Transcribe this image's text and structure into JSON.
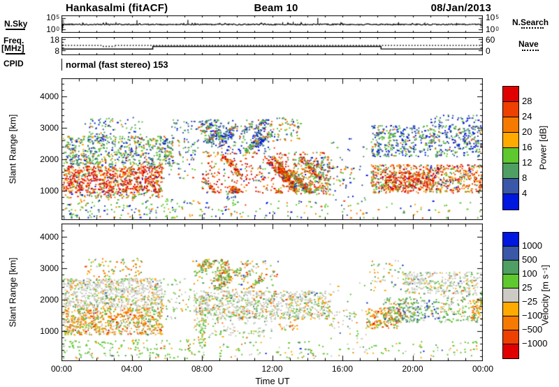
{
  "header": {
    "station": "Hankasalmi (fitACF)",
    "beam": "Beam 10",
    "date": "08/Jan/2013"
  },
  "panels": {
    "nsky": {
      "label": "N.Sky",
      "right_label": "N.Search",
      "hi_base": "10",
      "hi_exp": "5",
      "lo_base": "10",
      "lo_exp": "0"
    },
    "freq": {
      "label_line1": "Freq.",
      "label_line2": "[MHz]",
      "tick_top": "18",
      "tick_bottom": "8",
      "right_tick_top": "60",
      "right_tick_bottom": "0",
      "right_label": "Nave"
    },
    "cpid": {
      "label": "CPID",
      "value": "normal (fast stereo) 153"
    }
  },
  "axes": {
    "x": {
      "labels": [
        "00:00",
        "04:00",
        "08:00",
        "12:00",
        "16:00",
        "20:00",
        "00:00"
      ],
      "title": "Time UT"
    },
    "y": {
      "title": "Slant Range [km]",
      "ticks": [
        "4000",
        "3000",
        "2000",
        "1000"
      ],
      "tick_values": [
        4000,
        3000,
        2000,
        1000
      ]
    }
  },
  "colorbars": {
    "power": {
      "title": "Power [dB]",
      "labels": [
        "28",
        "24",
        "20",
        "16",
        "12",
        "8",
        "4"
      ],
      "colors": [
        "#e10000",
        "#ee4000",
        "#f67a00",
        "#ffaa00",
        "#5ec82e",
        "#4f9e63",
        "#3a57a8",
        "#0017e0"
      ]
    },
    "velocity": {
      "title_pre": "Velocity [m s",
      "title_sup": "−1",
      "title_post": "]",
      "labels": [
        "1000",
        "500",
        "100",
        "25",
        "−25",
        "−100",
        "−500",
        "−1000"
      ],
      "colors": [
        "#0017e0",
        "#3a57a8",
        "#4f9e63",
        "#5ec82e",
        "#cbcbc3",
        "#ffaa00",
        "#f67a00",
        "#ee4000",
        "#e10000"
      ]
    }
  },
  "chart_data": {
    "type": "heatmap",
    "subtype": "superdarn-range-time-intensity",
    "time_range_hours": [
      0,
      24
    ],
    "slant_range_km": [
      0,
      4500
    ],
    "nsky_line": {
      "scale": "log10",
      "axis_decades": [
        0,
        5
      ],
      "base_frac": 0.52,
      "spikes": [
        [
          1.2,
          0.25
        ],
        [
          3.1,
          0.3
        ],
        [
          4.3,
          0.55
        ],
        [
          7.2,
          0.6
        ],
        [
          9.0,
          0.2
        ],
        [
          12.6,
          0.3
        ],
        [
          13.2,
          0.35
        ],
        [
          14.6,
          0.85
        ],
        [
          16.0,
          0.2
        ],
        [
          19.2,
          0.3
        ],
        [
          20.7,
          0.25
        ],
        [
          22.5,
          0.2
        ]
      ]
    },
    "freq_mhz": {
      "axis": [
        8,
        18
      ],
      "steps": [
        [
          0,
          5.2,
          9.1
        ],
        [
          5.2,
          18.2,
          11.4
        ],
        [
          18.2,
          24,
          9.2
        ]
      ]
    },
    "nave": {
      "axis": [
        0,
        60
      ],
      "value": 26,
      "dip": {
        "t": [
          2.35,
          3.05
        ],
        "value": 21
      }
    },
    "power_regions": [
      [
        0,
        5.7,
        950,
        1800,
        0.5,
        [
          38,
          20,
          15,
          8,
          9,
          4,
          3,
          3
        ],
        null
      ],
      [
        0,
        5.7,
        780,
        950,
        0.22,
        [
          10,
          15,
          20,
          10,
          20,
          10,
          8,
          7
        ],
        null
      ],
      [
        0,
        6.3,
        1800,
        2750,
        0.3,
        [
          0,
          4,
          8,
          10,
          26,
          22,
          18,
          12
        ],
        null
      ],
      [
        1.3,
        4.6,
        2750,
        3350,
        0.1,
        [
          0,
          0,
          5,
          0,
          30,
          20,
          25,
          20
        ],
        null
      ],
      [
        0,
        7,
        150,
        750,
        0.09,
        [
          0,
          5,
          12,
          8,
          35,
          10,
          15,
          15
        ],
        null
      ],
      [
        7,
        14.5,
        150,
        700,
        0.05,
        [
          0,
          5,
          12,
          8,
          35,
          10,
          15,
          15
        ],
        null
      ],
      [
        14.5,
        24,
        150,
        700,
        0.03,
        [
          0,
          5,
          12,
          8,
          35,
          10,
          15,
          15
        ],
        null
      ],
      [
        5.6,
        7.6,
        1400,
        2700,
        0.08,
        [
          0,
          5,
          10,
          0,
          25,
          15,
          25,
          20
        ],
        null
      ],
      [
        6.2,
        7.4,
        2750,
        3300,
        0.1,
        [
          0,
          0,
          0,
          0,
          25,
          15,
          25,
          35
        ],
        null
      ],
      [
        7.4,
        12.3,
        2200,
        3280,
        0.32,
        [
          0,
          7,
          8,
          0,
          20,
          15,
          28,
          22
        ],
        {
          "n": 14,
          "len": 0.8,
          "slope": 500
        }
      ],
      [
        7.9,
        15.3,
        950,
        2250,
        0.45,
        [
          30,
          22,
          15,
          8,
          12,
          5,
          4,
          4
        ],
        {
          "n": 16,
          "len": 1,
          "slope": -650
        }
      ],
      [
        13.2,
        15.3,
        900,
        2100,
        0.28,
        [
          5,
          10,
          15,
          5,
          30,
          20,
          8,
          7
        ],
        null
      ],
      [
        12.2,
        13.6,
        2600,
        3350,
        0.15,
        [
          0,
          15,
          20,
          5,
          30,
          15,
          8,
          7
        ],
        null
      ],
      [
        9.2,
        9.9,
        350,
        1000,
        0.12,
        [
          0,
          0,
          0,
          0,
          30,
          20,
          30,
          20
        ],
        null
      ],
      [
        15.2,
        17.6,
        700,
        2700,
        0.02,
        [
          0,
          0,
          5,
          0,
          20,
          10,
          35,
          30
        ],
        null
      ],
      [
        15.2,
        16.6,
        1150,
        1800,
        0.1,
        [
          5,
          15,
          20,
          10,
          25,
          10,
          8,
          7
        ],
        null
      ],
      [
        17.6,
        24,
        950,
        1850,
        0.38,
        [
          18,
          20,
          20,
          10,
          14,
          8,
          5,
          5
        ],
        null
      ],
      [
        18.4,
        21.2,
        1050,
        1600,
        0.3,
        [
          45,
          25,
          15,
          5,
          5,
          3,
          1,
          1
        ],
        null
      ],
      [
        17.6,
        24,
        2100,
        3100,
        0.26,
        [
          0,
          4,
          6,
          0,
          22,
          18,
          25,
          25
        ],
        null
      ],
      [
        21,
        23.8,
        3050,
        3450,
        0.1,
        [
          0,
          0,
          0,
          0,
          20,
          10,
          30,
          40
        ],
        null
      ]
    ],
    "velocity_regions": [
      [
        0,
        5.7,
        1750,
        2700,
        0.42,
        [
          0,
          1,
          4,
          10,
          70,
          8,
          6,
          1,
          0
        ],
        null
      ],
      [
        0,
        5.7,
        900,
        1750,
        0.42,
        [
          0,
          1,
          7,
          16,
          18,
          22,
          26,
          7,
          3
        ],
        null
      ],
      [
        1.3,
        4.6,
        2750,
        3350,
        0.11,
        [
          0,
          0,
          12,
          25,
          10,
          20,
          28,
          5,
          0
        ],
        null
      ],
      [
        0,
        8,
        150,
        750,
        0.09,
        [
          1,
          1,
          7,
          60,
          15,
          8,
          7,
          1,
          0
        ],
        null
      ],
      [
        8,
        14.5,
        150,
        700,
        0.05,
        [
          1,
          1,
          7,
          60,
          15,
          8,
          7,
          1,
          0
        ],
        null
      ],
      [
        14.5,
        24,
        150,
        700,
        0.04,
        [
          1,
          1,
          7,
          60,
          15,
          8,
          7,
          1,
          0
        ],
        null
      ],
      [
        5.6,
        7.4,
        1400,
        2700,
        0.07,
        [
          0,
          2,
          10,
          25,
          45,
          10,
          8,
          0,
          0
        ],
        null
      ],
      [
        7.4,
        12.3,
        2300,
        3300,
        0.26,
        [
          1,
          3,
          18,
          25,
          12,
          15,
          18,
          6,
          2
        ],
        {
          "n": 12,
          "len": 0.8,
          "slope": 500
        }
      ],
      [
        7.5,
        15.3,
        1400,
        2300,
        0.38,
        [
          0,
          2,
          6,
          15,
          62,
          8,
          5,
          1,
          1
        ],
        null
      ],
      [
        7.5,
        12,
        800,
        1400,
        0.1,
        [
          0,
          0,
          10,
          30,
          48,
          8,
          4,
          0,
          0
        ],
        null
      ],
      [
        7.8,
        8.2,
        500,
        1400,
        0.3,
        [
          0,
          0,
          18,
          58,
          4,
          14,
          6,
          0,
          0
        ],
        null
      ],
      [
        12.3,
        13.4,
        1050,
        1500,
        0.16,
        [
          0,
          1,
          4,
          10,
          22,
          28,
          30,
          4,
          1
        ],
        null
      ],
      [
        15.2,
        17.6,
        700,
        2700,
        0.015,
        [
          2,
          5,
          10,
          25,
          35,
          13,
          8,
          2,
          0
        ],
        null
      ],
      [
        15.2,
        16.8,
        1100,
        1700,
        0.1,
        [
          0,
          2,
          10,
          15,
          55,
          10,
          8,
          0,
          0
        ],
        null
      ],
      [
        17.3,
        19.3,
        1100,
        1750,
        0.38,
        [
          0,
          1,
          5,
          12,
          8,
          28,
          32,
          10,
          4
        ],
        null
      ],
      [
        18.3,
        20.6,
        1300,
        2100,
        0.3,
        [
          2,
          8,
          38,
          24,
          14,
          8,
          4,
          2,
          0
        ],
        null
      ],
      [
        20.6,
        21.4,
        1400,
        2000,
        0.22,
        [
          10,
          32,
          24,
          14,
          16,
          3,
          1,
          0,
          0
        ],
        null
      ],
      [
        19.5,
        24,
        2200,
        2900,
        0.3,
        [
          1,
          3,
          8,
          12,
          66,
          6,
          3,
          1,
          0
        ],
        null
      ],
      [
        17.5,
        19.5,
        2300,
        3300,
        0.07,
        [
          2,
          8,
          20,
          30,
          15,
          15,
          8,
          2,
          0
        ],
        null
      ],
      [
        21.3,
        24,
        1300,
        2200,
        0.18,
        [
          1,
          4,
          14,
          34,
          30,
          8,
          7,
          2,
          0
        ],
        null
      ],
      [
        23.3,
        24,
        1400,
        2050,
        0.3,
        [
          0,
          0,
          2,
          10,
          6,
          28,
          40,
          12,
          2
        ],
        null
      ]
    ]
  }
}
